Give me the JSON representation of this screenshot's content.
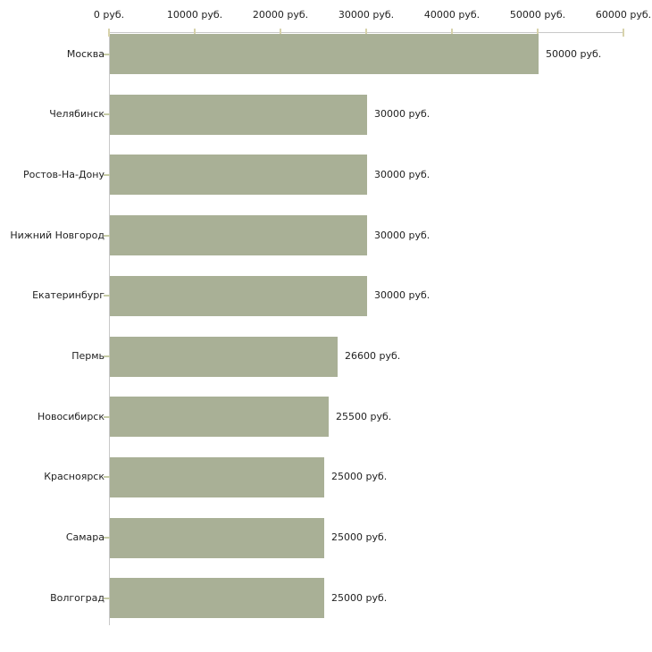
{
  "chart_data": {
    "type": "bar",
    "orientation": "horizontal",
    "title": "",
    "xlabel": "",
    "ylabel": "",
    "grid": false,
    "legend": null,
    "categories": [
      "Москва",
      "Челябинск",
      "Ростов-На-Дону",
      "Нижний Новгород",
      "Екатеринбург",
      "Пермь",
      "Новосибирск",
      "Красноярск",
      "Самара",
      "Волгоград"
    ],
    "values": [
      50000,
      30000,
      30000,
      30000,
      30000,
      26600,
      25500,
      25000,
      25000,
      25000
    ],
    "value_labels": [
      "50000 руб.",
      "30000 руб.",
      "30000 руб.",
      "30000 руб.",
      "30000 руб.",
      "26600 руб.",
      "25500 руб.",
      "25000 руб.",
      "25000 руб.",
      "25000 руб."
    ],
    "x_axis": {
      "position": "top",
      "range": [
        0,
        60000
      ],
      "ticks": [
        0,
        10000,
        20000,
        30000,
        40000,
        50000,
        60000
      ],
      "tick_labels": [
        "0 руб.",
        "10000 руб.",
        "20000 руб.",
        "30000 руб.",
        "40000 руб.",
        "50000 руб.",
        "60000 руб."
      ]
    },
    "colors": {
      "bar": "#a9b096",
      "axis_line": "#c8c8c8",
      "x_tick": "#d8d3ac",
      "y_tick": "#c6cba6",
      "text": "#222222",
      "background": "#ffffff"
    }
  }
}
